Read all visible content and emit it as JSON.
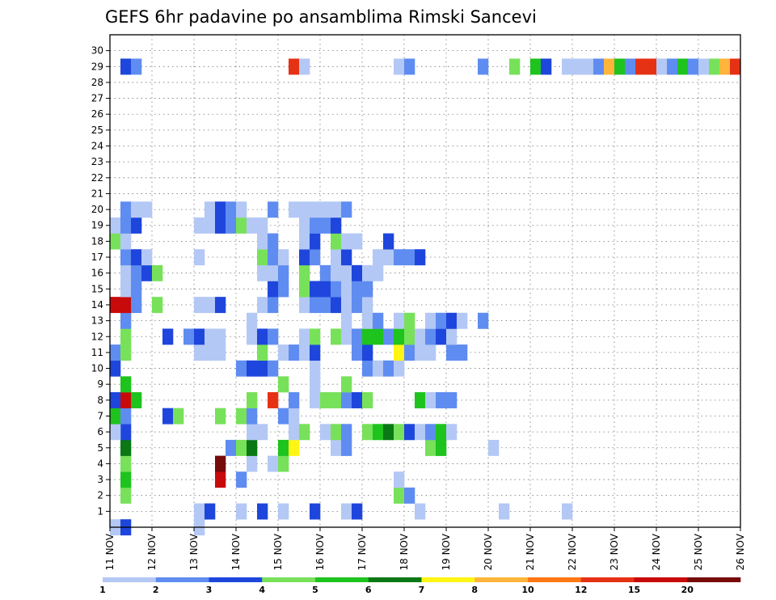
{
  "chart_data": {
    "type": "heatmap",
    "title": "GEFS 6hr padavine po ansamblima Rimski Sancevi",
    "xlabel": "",
    "ylabel": "",
    "x_tick_labels": [
      "11 NOV",
      "12 NOV",
      "13 NOV",
      "14 NOV",
      "15 NOV",
      "16 NOV",
      "17 NOV",
      "18 NOV",
      "19 NOV",
      "20 NOV",
      "21 NOV",
      "22 NOV",
      "23 NOV",
      "24 NOV",
      "25 NOV",
      "26 NOV"
    ],
    "y_tick_labels": [
      "1",
      "2",
      "3",
      "4",
      "5",
      "6",
      "7",
      "8",
      "9",
      "10",
      "11",
      "12",
      "13",
      "14",
      "15",
      "16",
      "17",
      "18",
      "19",
      "20",
      "21",
      "22",
      "23",
      "24",
      "25",
      "26",
      "27",
      "28",
      "29",
      "30"
    ],
    "xlim": [
      0,
      60
    ],
    "ylim": [
      0,
      31
    ],
    "grid": true,
    "color_levels": [
      1,
      2,
      3,
      4,
      5,
      6,
      7,
      8,
      10,
      12,
      15,
      20
    ],
    "colorbar_labels": [
      "1",
      "2",
      "3",
      "4",
      "5",
      "6",
      "7",
      "8",
      "10",
      "12",
      "15",
      "20"
    ],
    "colorbar_colors": [
      "#b4c8f5",
      "#5f8cf0",
      "#1e46dc",
      "#78e15a",
      "#1ec31e",
      "#0a7814",
      "#fff514",
      "#ffb43c",
      "#ff7814",
      "#e63214",
      "#c80a0a",
      "#780a0a"
    ],
    "notes": "Cells: [x_step, member, color_index]; x_step = 6-hour step from 11 NOV 00z, member = ensemble member (y).",
    "cells": [
      [
        0,
        0,
        0
      ],
      [
        1,
        0,
        2
      ],
      [
        8,
        0,
        0
      ],
      [
        8,
        1,
        0
      ],
      [
        9,
        1,
        2
      ],
      [
        12,
        1,
        0
      ],
      [
        14,
        1,
        2
      ],
      [
        16,
        1,
        0
      ],
      [
        19,
        1,
        2
      ],
      [
        22,
        1,
        0
      ],
      [
        23,
        1,
        2
      ],
      [
        29,
        1,
        0
      ],
      [
        37,
        1,
        0
      ],
      [
        43,
        1,
        0
      ],
      [
        1,
        2,
        3
      ],
      [
        27,
        2,
        3
      ],
      [
        28,
        2,
        1
      ],
      [
        1,
        3,
        4
      ],
      [
        10,
        3,
        10
      ],
      [
        12,
        3,
        1
      ],
      [
        27,
        3,
        0
      ],
      [
        1,
        4,
        3
      ],
      [
        10,
        4,
        11
      ],
      [
        13,
        4,
        0
      ],
      [
        15,
        4,
        0
      ],
      [
        16,
        4,
        3
      ],
      [
        1,
        5,
        5
      ],
      [
        11,
        5,
        1
      ],
      [
        12,
        5,
        3
      ],
      [
        13,
        5,
        5
      ],
      [
        16,
        5,
        4
      ],
      [
        17,
        5,
        6
      ],
      [
        21,
        5,
        0
      ],
      [
        22,
        5,
        1
      ],
      [
        30,
        5,
        3
      ],
      [
        31,
        5,
        4
      ],
      [
        36,
        5,
        0
      ],
      [
        1,
        6,
        2
      ],
      [
        0,
        6,
        0
      ],
      [
        13,
        6,
        0
      ],
      [
        14,
        6,
        0
      ],
      [
        17,
        6,
        0
      ],
      [
        18,
        6,
        3
      ],
      [
        20,
        6,
        0
      ],
      [
        21,
        6,
        3
      ],
      [
        22,
        6,
        1
      ],
      [
        24,
        6,
        3
      ],
      [
        25,
        6,
        4
      ],
      [
        26,
        6,
        5
      ],
      [
        27,
        6,
        3
      ],
      [
        28,
        6,
        2
      ],
      [
        29,
        6,
        0
      ],
      [
        30,
        6,
        1
      ],
      [
        31,
        6,
        4
      ],
      [
        32,
        6,
        0
      ],
      [
        0,
        7,
        4
      ],
      [
        1,
        7,
        1
      ],
      [
        5,
        7,
        2
      ],
      [
        6,
        7,
        3
      ],
      [
        10,
        7,
        3
      ],
      [
        12,
        7,
        3
      ],
      [
        13,
        7,
        1
      ],
      [
        16,
        7,
        1
      ],
      [
        17,
        7,
        0
      ],
      [
        0,
        8,
        2
      ],
      [
        1,
        8,
        10
      ],
      [
        2,
        8,
        4
      ],
      [
        13,
        8,
        3
      ],
      [
        15,
        8,
        9
      ],
      [
        17,
        8,
        1
      ],
      [
        19,
        8,
        0
      ],
      [
        20,
        8,
        3
      ],
      [
        21,
        8,
        3
      ],
      [
        22,
        8,
        1
      ],
      [
        23,
        8,
        2
      ],
      [
        24,
        8,
        3
      ],
      [
        29,
        8,
        4
      ],
      [
        30,
        8,
        0
      ],
      [
        31,
        8,
        1
      ],
      [
        32,
        8,
        1
      ],
      [
        1,
        9,
        4
      ],
      [
        16,
        9,
        3
      ],
      [
        19,
        9,
        0
      ],
      [
        22,
        9,
        3
      ],
      [
        0,
        10,
        2
      ],
      [
        12,
        10,
        1
      ],
      [
        13,
        10,
        2
      ],
      [
        14,
        10,
        2
      ],
      [
        15,
        10,
        1
      ],
      [
        19,
        10,
        0
      ],
      [
        24,
        10,
        1
      ],
      [
        25,
        10,
        0
      ],
      [
        26,
        10,
        1
      ],
      [
        27,
        10,
        0
      ],
      [
        0,
        11,
        1
      ],
      [
        1,
        11,
        3
      ],
      [
        8,
        11,
        0
      ],
      [
        9,
        11,
        0
      ],
      [
        10,
        11,
        0
      ],
      [
        14,
        11,
        3
      ],
      [
        16,
        11,
        0
      ],
      [
        17,
        11,
        1
      ],
      [
        18,
        11,
        0
      ],
      [
        19,
        11,
        2
      ],
      [
        23,
        11,
        1
      ],
      [
        24,
        11,
        2
      ],
      [
        27,
        11,
        6
      ],
      [
        28,
        11,
        1
      ],
      [
        29,
        11,
        0
      ],
      [
        30,
        11,
        0
      ],
      [
        32,
        11,
        1
      ],
      [
        33,
        11,
        1
      ],
      [
        1,
        12,
        3
      ],
      [
        5,
        12,
        2
      ],
      [
        7,
        12,
        1
      ],
      [
        8,
        12,
        2
      ],
      [
        9,
        12,
        0
      ],
      [
        10,
        12,
        0
      ],
      [
        13,
        12,
        0
      ],
      [
        14,
        12,
        2
      ],
      [
        15,
        12,
        1
      ],
      [
        18,
        12,
        0
      ],
      [
        19,
        12,
        3
      ],
      [
        21,
        12,
        3
      ],
      [
        22,
        12,
        0
      ],
      [
        23,
        12,
        1
      ],
      [
        24,
        12,
        4
      ],
      [
        25,
        12,
        4
      ],
      [
        26,
        12,
        1
      ],
      [
        27,
        12,
        4
      ],
      [
        28,
        12,
        3
      ],
      [
        29,
        12,
        0
      ],
      [
        30,
        12,
        1
      ],
      [
        31,
        12,
        2
      ],
      [
        32,
        12,
        0
      ],
      [
        1,
        13,
        1
      ],
      [
        13,
        13,
        0
      ],
      [
        22,
        13,
        0
      ],
      [
        24,
        13,
        0
      ],
      [
        25,
        13,
        1
      ],
      [
        27,
        13,
        0
      ],
      [
        28,
        13,
        3
      ],
      [
        30,
        13,
        0
      ],
      [
        31,
        13,
        1
      ],
      [
        32,
        13,
        2
      ],
      [
        33,
        13,
        0
      ],
      [
        35,
        13,
        1
      ],
      [
        0,
        14,
        10
      ],
      [
        1,
        14,
        10
      ],
      [
        2,
        14,
        1
      ],
      [
        4,
        14,
        3
      ],
      [
        8,
        14,
        0
      ],
      [
        9,
        14,
        0
      ],
      [
        10,
        14,
        2
      ],
      [
        14,
        14,
        0
      ],
      [
        15,
        14,
        1
      ],
      [
        18,
        14,
        0
      ],
      [
        19,
        14,
        1
      ],
      [
        20,
        14,
        1
      ],
      [
        21,
        14,
        2
      ],
      [
        22,
        14,
        0
      ],
      [
        23,
        14,
        1
      ],
      [
        24,
        14,
        0
      ],
      [
        1,
        15,
        0
      ],
      [
        2,
        15,
        1
      ],
      [
        15,
        15,
        2
      ],
      [
        16,
        15,
        1
      ],
      [
        18,
        15,
        3
      ],
      [
        19,
        15,
        2
      ],
      [
        20,
        15,
        2
      ],
      [
        21,
        15,
        1
      ],
      [
        22,
        15,
        0
      ],
      [
        23,
        15,
        1
      ],
      [
        24,
        15,
        1
      ],
      [
        1,
        16,
        0
      ],
      [
        2,
        16,
        1
      ],
      [
        3,
        16,
        2
      ],
      [
        4,
        16,
        3
      ],
      [
        14,
        16,
        0
      ],
      [
        15,
        16,
        0
      ],
      [
        16,
        16,
        1
      ],
      [
        18,
        16,
        3
      ],
      [
        20,
        16,
        1
      ],
      [
        21,
        16,
        0
      ],
      [
        22,
        16,
        0
      ],
      [
        23,
        16,
        2
      ],
      [
        24,
        16,
        0
      ],
      [
        25,
        16,
        0
      ],
      [
        1,
        17,
        1
      ],
      [
        2,
        17,
        2
      ],
      [
        3,
        17,
        0
      ],
      [
        8,
        17,
        0
      ],
      [
        14,
        17,
        3
      ],
      [
        15,
        17,
        1
      ],
      [
        16,
        17,
        0
      ],
      [
        18,
        17,
        2
      ],
      [
        19,
        17,
        1
      ],
      [
        21,
        17,
        0
      ],
      [
        22,
        17,
        2
      ],
      [
        25,
        17,
        0
      ],
      [
        26,
        17,
        0
      ],
      [
        27,
        17,
        1
      ],
      [
        28,
        17,
        1
      ],
      [
        29,
        17,
        2
      ],
      [
        0,
        18,
        3
      ],
      [
        1,
        18,
        0
      ],
      [
        14,
        18,
        0
      ],
      [
        15,
        18,
        1
      ],
      [
        18,
        18,
        0
      ],
      [
        19,
        18,
        2
      ],
      [
        21,
        18,
        3
      ],
      [
        22,
        18,
        0
      ],
      [
        23,
        18,
        0
      ],
      [
        26,
        18,
        2
      ],
      [
        0,
        19,
        0
      ],
      [
        1,
        19,
        1
      ],
      [
        2,
        19,
        2
      ],
      [
        8,
        19,
        0
      ],
      [
        9,
        19,
        0
      ],
      [
        10,
        19,
        2
      ],
      [
        11,
        19,
        1
      ],
      [
        12,
        19,
        3
      ],
      [
        13,
        19,
        0
      ],
      [
        14,
        19,
        0
      ],
      [
        18,
        19,
        0
      ],
      [
        19,
        19,
        1
      ],
      [
        20,
        19,
        1
      ],
      [
        21,
        19,
        2
      ],
      [
        1,
        20,
        1
      ],
      [
        2,
        20,
        0
      ],
      [
        3,
        20,
        0
      ],
      [
        9,
        20,
        0
      ],
      [
        10,
        20,
        2
      ],
      [
        11,
        20,
        1
      ],
      [
        12,
        20,
        0
      ],
      [
        15,
        20,
        1
      ],
      [
        17,
        20,
        0
      ],
      [
        18,
        20,
        0
      ],
      [
        19,
        20,
        0
      ],
      [
        20,
        20,
        0
      ],
      [
        21,
        20,
        0
      ],
      [
        22,
        20,
        1
      ]
    ],
    "members_top": [
      [
        1,
        29,
        2
      ],
      [
        2,
        29,
        1
      ],
      [
        17,
        29,
        9
      ],
      [
        18,
        29,
        0
      ],
      [
        27,
        29,
        0
      ],
      [
        28,
        29,
        1
      ],
      [
        35,
        29,
        1
      ],
      [
        38,
        29,
        3
      ],
      [
        40,
        29,
        4
      ],
      [
        41,
        29,
        2
      ],
      [
        43,
        29,
        0
      ],
      [
        44,
        29,
        0
      ],
      [
        45,
        29,
        0
      ],
      [
        46,
        29,
        1
      ],
      [
        47,
        29,
        7
      ],
      [
        48,
        29,
        4
      ],
      [
        49,
        29,
        1
      ],
      [
        50,
        29,
        9
      ],
      [
        51,
        29,
        9
      ],
      [
        52,
        29,
        0
      ],
      [
        53,
        29,
        1
      ],
      [
        54,
        29,
        4
      ],
      [
        55,
        29,
        1
      ],
      [
        56,
        29,
        0
      ],
      [
        57,
        29,
        3
      ],
      [
        58,
        29,
        7
      ],
      [
        59,
        29,
        9
      ]
    ]
  }
}
